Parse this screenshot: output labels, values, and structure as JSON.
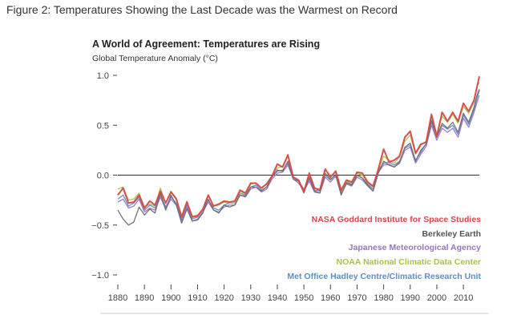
{
  "caption": "Figure 2: Temperatures Showing the Last Decade was the Warmest on Record",
  "chart_data": {
    "type": "line",
    "title": "A World of Agreement: Temperatures are Rising",
    "ylabel": "Global Temperature Anomaly (°C)",
    "xlabel": "",
    "xlim": [
      1880,
      2016
    ],
    "ylim": [
      -1.0,
      1.0
    ],
    "yticks": [
      {
        "value": 1.0,
        "label": "1.0"
      },
      {
        "value": 0.5,
        "label": "0.5"
      },
      {
        "value": 0.0,
        "label": "0.0"
      },
      {
        "value": -0.5,
        "label": "−0.5"
      },
      {
        "value": -1.0,
        "label": "−1.0"
      }
    ],
    "xticks": [
      1880,
      1890,
      1900,
      1910,
      1920,
      1930,
      1940,
      1950,
      1960,
      1970,
      1980,
      1990,
      2000,
      2010
    ],
    "zero_line": 0.0,
    "years": [
      1880,
      1882,
      1884,
      1886,
      1888,
      1890,
      1892,
      1894,
      1896,
      1898,
      1900,
      1902,
      1904,
      1906,
      1908,
      1910,
      1912,
      1914,
      1916,
      1918,
      1920,
      1922,
      1924,
      1926,
      1928,
      1930,
      1932,
      1934,
      1936,
      1938,
      1940,
      1942,
      1944,
      1946,
      1948,
      1950,
      1952,
      1954,
      1956,
      1958,
      1960,
      1962,
      1964,
      1966,
      1968,
      1970,
      1972,
      1974,
      1976,
      1978,
      1980,
      1982,
      1984,
      1986,
      1988,
      1990,
      1992,
      1994,
      1996,
      1998,
      2000,
      2002,
      2004,
      2006,
      2008,
      2010,
      2012,
      2014,
      2015,
      2016
    ],
    "series": [
      {
        "name": "Met Office Hadley Centre/Climatic Research Unit",
        "color": "#5b8fc7",
        "values": [
          -0.24,
          -0.2,
          -0.31,
          -0.28,
          -0.22,
          -0.35,
          -0.3,
          -0.33,
          -0.2,
          -0.32,
          -0.22,
          -0.28,
          -0.45,
          -0.3,
          -0.44,
          -0.42,
          -0.35,
          -0.25,
          -0.33,
          -0.35,
          -0.3,
          -0.28,
          -0.28,
          -0.18,
          -0.2,
          -0.12,
          -0.1,
          -0.15,
          -0.12,
          -0.02,
          0.04,
          0.05,
          0.12,
          -0.02,
          -0.06,
          -0.14,
          -0.04,
          -0.15,
          -0.16,
          0.0,
          -0.05,
          0.01,
          -0.16,
          -0.07,
          -0.09,
          0.0,
          -0.03,
          -0.09,
          -0.14,
          0.05,
          0.12,
          0.13,
          0.1,
          0.14,
          0.27,
          0.3,
          0.15,
          0.23,
          0.32,
          0.53,
          0.38,
          0.5,
          0.46,
          0.5,
          0.41,
          0.6,
          0.51,
          0.66,
          0.76,
          0.85
        ]
      },
      {
        "name": "NOAA National Climatic Data Center",
        "color": "#a8c34a",
        "values": [
          -0.14,
          -0.12,
          -0.25,
          -0.24,
          -0.18,
          -0.32,
          -0.29,
          -0.31,
          -0.13,
          -0.28,
          -0.16,
          -0.23,
          -0.41,
          -0.26,
          -0.41,
          -0.4,
          -0.34,
          -0.2,
          -0.31,
          -0.3,
          -0.27,
          -0.28,
          -0.28,
          -0.16,
          -0.19,
          -0.09,
          -0.08,
          -0.13,
          -0.08,
          -0.01,
          0.07,
          0.09,
          0.21,
          -0.02,
          -0.05,
          -0.16,
          0.01,
          -0.13,
          -0.14,
          0.06,
          -0.01,
          0.03,
          -0.17,
          -0.06,
          -0.08,
          0.02,
          0.0,
          -0.08,
          -0.12,
          0.05,
          0.19,
          0.15,
          0.12,
          0.18,
          0.34,
          0.4,
          0.21,
          0.3,
          0.34,
          0.59,
          0.41,
          0.59,
          0.53,
          0.61,
          0.52,
          0.69,
          0.62,
          0.73,
          0.88,
          0.93
        ]
      },
      {
        "name": "Japanese Meteorological Agency",
        "color": "#9b73c8",
        "values": [
          -0.27,
          -0.24,
          -0.33,
          -0.31,
          -0.24,
          -0.37,
          -0.33,
          -0.35,
          -0.22,
          -0.34,
          -0.24,
          -0.3,
          -0.47,
          -0.32,
          -0.46,
          -0.44,
          -0.37,
          -0.27,
          -0.35,
          -0.37,
          -0.32,
          -0.3,
          -0.3,
          -0.2,
          -0.22,
          -0.14,
          -0.12,
          -0.17,
          -0.14,
          -0.04,
          0.02,
          0.03,
          0.1,
          -0.04,
          -0.08,
          -0.16,
          -0.06,
          -0.17,
          -0.18,
          -0.02,
          -0.07,
          -0.01,
          -0.18,
          -0.09,
          -0.11,
          -0.02,
          -0.05,
          -0.11,
          -0.16,
          0.03,
          0.1,
          0.11,
          0.08,
          0.12,
          0.25,
          0.28,
          0.12,
          0.21,
          0.29,
          0.5,
          0.35,
          0.47,
          0.43,
          0.47,
          0.38,
          0.57,
          0.48,
          0.63,
          0.72,
          0.8
        ]
      },
      {
        "name": "Berkeley Earth",
        "color": "#6b6b6b",
        "values": [
          -0.35,
          -0.44,
          -0.5,
          -0.47,
          -0.32,
          -0.4,
          -0.34,
          -0.38,
          -0.18,
          -0.35,
          -0.2,
          -0.3,
          -0.48,
          -0.34,
          -0.46,
          -0.45,
          -0.38,
          -0.24,
          -0.35,
          -0.38,
          -0.3,
          -0.32,
          -0.3,
          -0.2,
          -0.21,
          -0.12,
          -0.12,
          -0.16,
          -0.12,
          -0.02,
          0.05,
          0.04,
          0.14,
          -0.04,
          -0.06,
          -0.18,
          -0.02,
          -0.16,
          -0.18,
          0.02,
          -0.04,
          0.0,
          -0.2,
          -0.08,
          -0.1,
          0.0,
          -0.03,
          -0.1,
          -0.16,
          0.02,
          0.14,
          0.1,
          0.08,
          0.13,
          0.28,
          0.32,
          0.14,
          0.25,
          0.31,
          0.55,
          0.38,
          0.52,
          0.47,
          0.53,
          0.43,
          0.62,
          0.53,
          0.68,
          0.79,
          0.86
        ]
      },
      {
        "name": "NASA Goddard Institute for Space Studies",
        "color": "#d64848",
        "values": [
          -0.2,
          -0.13,
          -0.28,
          -0.27,
          -0.2,
          -0.33,
          -0.26,
          -0.3,
          -0.16,
          -0.28,
          -0.17,
          -0.24,
          -0.42,
          -0.27,
          -0.42,
          -0.41,
          -0.34,
          -0.2,
          -0.31,
          -0.29,
          -0.26,
          -0.27,
          -0.26,
          -0.15,
          -0.18,
          -0.08,
          -0.08,
          -0.13,
          -0.09,
          -0.01,
          0.11,
          0.08,
          0.2,
          -0.02,
          -0.05,
          -0.17,
          0.02,
          -0.13,
          -0.15,
          0.06,
          -0.02,
          0.04,
          -0.15,
          -0.05,
          -0.07,
          0.03,
          0.02,
          -0.07,
          -0.11,
          0.06,
          0.26,
          0.13,
          0.15,
          0.19,
          0.38,
          0.44,
          0.22,
          0.31,
          0.33,
          0.61,
          0.39,
          0.63,
          0.54,
          0.63,
          0.54,
          0.72,
          0.64,
          0.75,
          0.87,
          0.99
        ]
      }
    ],
    "legend": [
      {
        "label": "NASA Goddard Institute for Space Studies",
        "color": "#d64848"
      },
      {
        "label": "Berkeley Earth",
        "color": "#555555"
      },
      {
        "label": "Japanese Meteorological Agency",
        "color": "#9b73c8"
      },
      {
        "label": "NOAA National Climatic Data Center",
        "color": "#a8c34a"
      },
      {
        "label": "Met Office Hadley Centre/Climatic Research Unit",
        "color": "#5b8fc7"
      }
    ]
  }
}
